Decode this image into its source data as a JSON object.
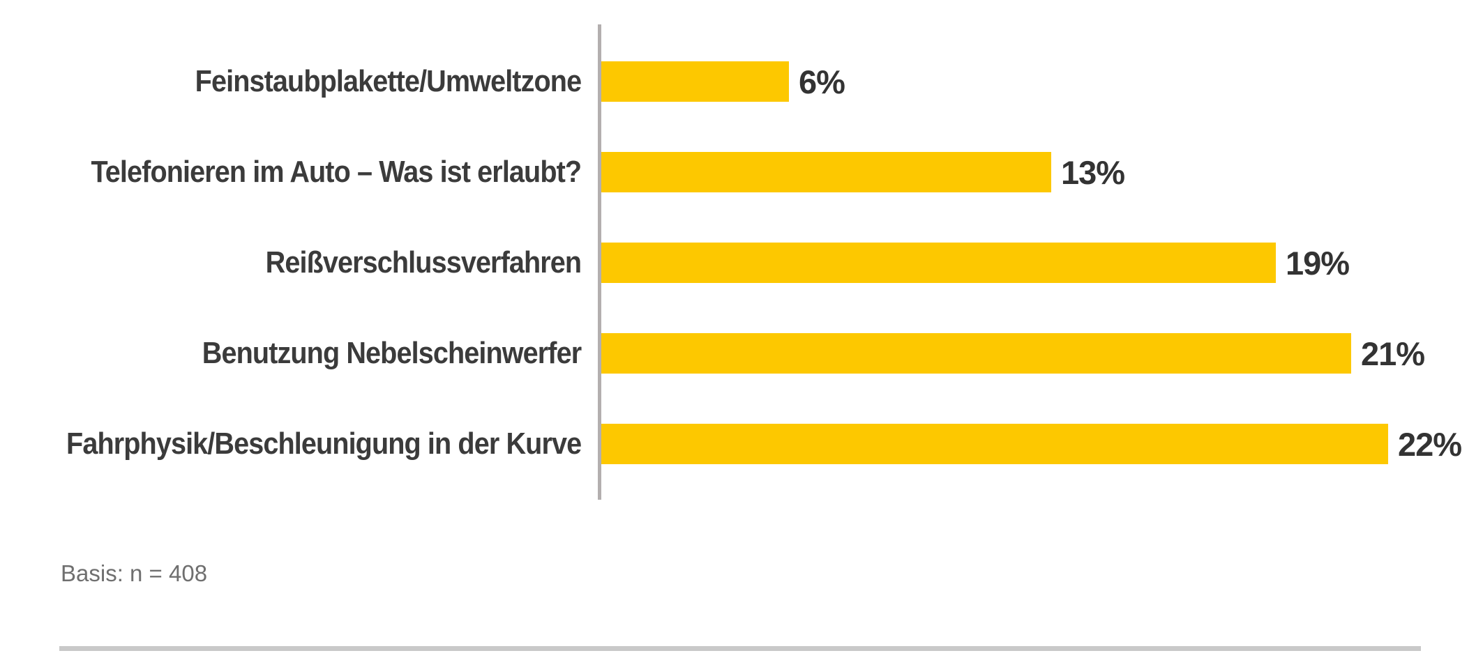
{
  "chart_data": {
    "type": "bar",
    "orientation": "horizontal",
    "categories": [
      "Feinstaubplakette/Umweltzone",
      "Telefonieren im Auto – Was ist erlaubt?",
      "Reißverschlussverfahren",
      "Benutzung Nebelscheinwerfer",
      "Fahrphysik/Beschleunigung in der Kurve"
    ],
    "values": [
      6,
      13,
      19,
      21,
      22
    ],
    "value_labels": [
      "6%",
      "13%",
      "19%",
      "21%",
      "22%"
    ],
    "unit": "%",
    "xlim": [
      0,
      22
    ],
    "grid": false,
    "legend": false,
    "bar_color": "#FDC800",
    "axis_color": "#B3AFAF",
    "label_color": "#3B3B3B",
    "value_color": "#333333"
  },
  "footer": {
    "basis_note": "Basis: n = 408",
    "divider_color": "#C9C9C9"
  }
}
